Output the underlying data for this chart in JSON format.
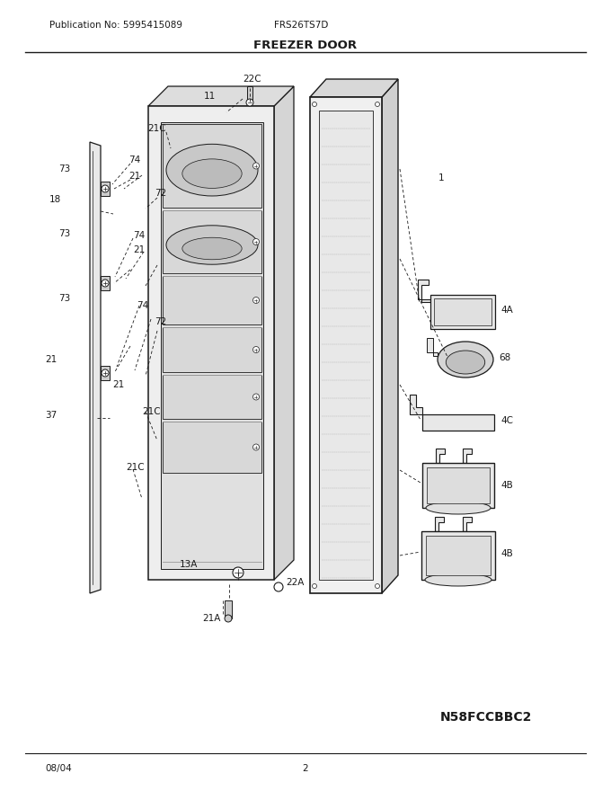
{
  "title": "FREEZER DOOR",
  "pub_no": "Publication No: 5995415089",
  "model": "FRS26TS7D",
  "date": "08/04",
  "page": "2",
  "part_id": "N58FCCBBC2",
  "bg_color": "#ffffff",
  "line_color": "#1a1a1a",
  "gray_light": "#e8e8e8",
  "gray_med": "#cccccc",
  "gray_dark": "#aaaaaa"
}
